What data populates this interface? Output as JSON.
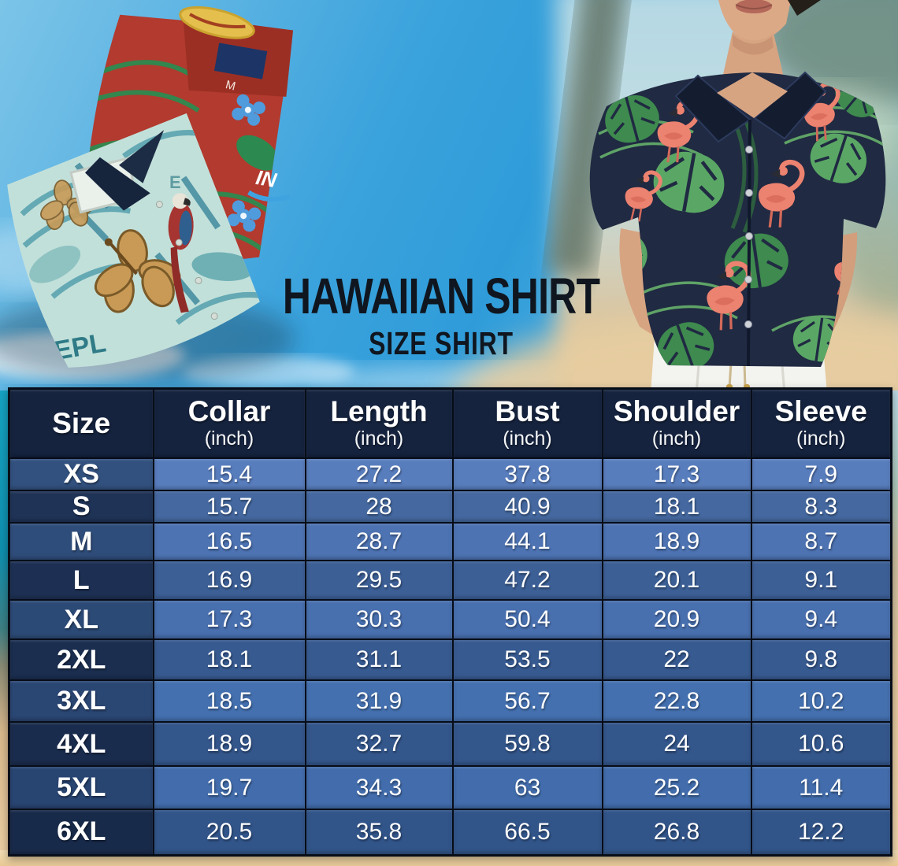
{
  "title": {
    "main": "HAWAIIAN SHIRT",
    "sub": "SIZE SHIRT"
  },
  "chart_data": {
    "type": "table",
    "title": "HAWAIIAN SHIRT SIZE SHIRT",
    "unit_label": "(inch)",
    "columns": [
      {
        "label": "Size",
        "unit": null
      },
      {
        "label": "Collar",
        "unit": "(inch)"
      },
      {
        "label": "Length",
        "unit": "(inch)"
      },
      {
        "label": "Bust",
        "unit": "(inch)"
      },
      {
        "label": "Shoulder",
        "unit": "(inch)"
      },
      {
        "label": "Sleeve",
        "unit": "(inch)"
      }
    ],
    "rows": [
      {
        "size": "XS",
        "collar": 15.4,
        "length": 27.2,
        "bust": 37.8,
        "shoulder": 17.3,
        "sleeve": 7.9
      },
      {
        "size": "S",
        "collar": 15.7,
        "length": 28,
        "bust": 40.9,
        "shoulder": 18.1,
        "sleeve": 8.3
      },
      {
        "size": "M",
        "collar": 16.5,
        "length": 28.7,
        "bust": 44.1,
        "shoulder": 18.9,
        "sleeve": 8.7
      },
      {
        "size": "L",
        "collar": 16.9,
        "length": 29.5,
        "bust": 47.2,
        "shoulder": 20.1,
        "sleeve": 9.1
      },
      {
        "size": "XL",
        "collar": 17.3,
        "length": 30.3,
        "bust": 50.4,
        "shoulder": 20.9,
        "sleeve": 9.4
      },
      {
        "size": "2XL",
        "collar": 18.1,
        "length": 31.1,
        "bust": 53.5,
        "shoulder": 22,
        "sleeve": 9.8
      },
      {
        "size": "3XL",
        "collar": 18.5,
        "length": 31.9,
        "bust": 56.7,
        "shoulder": 22.8,
        "sleeve": 10.2
      },
      {
        "size": "4XL",
        "collar": 18.9,
        "length": 32.7,
        "bust": 59.8,
        "shoulder": 24,
        "sleeve": 10.6
      },
      {
        "size": "5XL",
        "collar": 19.7,
        "length": 34.3,
        "bust": 63,
        "shoulder": 25.2,
        "sleeve": 11.4
      },
      {
        "size": "6XL",
        "collar": 20.5,
        "length": 35.8,
        "bust": 66.5,
        "shoulder": 26.8,
        "sleeve": 12.2
      }
    ]
  },
  "photos": {
    "left_shirts": {
      "collar_size_tag": "M",
      "print_text": "EPL",
      "brand_text": "IN"
    }
  },
  "colors": {
    "table_header_bg": "#15233f",
    "row_light_blue": "#4d73b2",
    "row_dark_blue": "#1d3053",
    "sky_blue": "#2f9cd9",
    "sand": "#eccfa4",
    "title_text": "#10161f",
    "red_shirt": "#b23a2e",
    "teal_shirt": "#c2e0da",
    "navy_shirt": "#202a42",
    "flamingo_pink": "#ec8270",
    "leaf_green": "#3e8a4f"
  }
}
